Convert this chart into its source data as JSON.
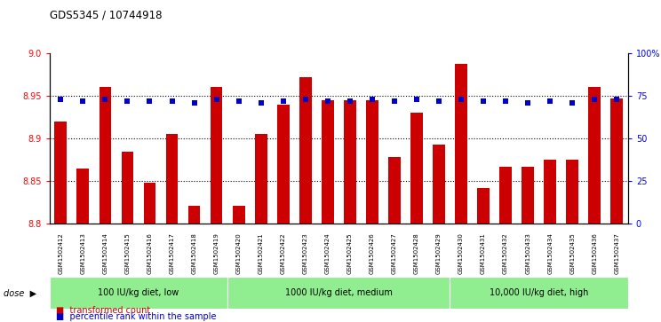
{
  "title": "GDS5345 / 10744918",
  "samples": [
    "GSM1502412",
    "GSM1502413",
    "GSM1502414",
    "GSM1502415",
    "GSM1502416",
    "GSM1502417",
    "GSM1502418",
    "GSM1502419",
    "GSM1502420",
    "GSM1502421",
    "GSM1502422",
    "GSM1502423",
    "GSM1502424",
    "GSM1502425",
    "GSM1502426",
    "GSM1502427",
    "GSM1502428",
    "GSM1502429",
    "GSM1502430",
    "GSM1502431",
    "GSM1502432",
    "GSM1502433",
    "GSM1502434",
    "GSM1502435",
    "GSM1502436",
    "GSM1502437"
  ],
  "bar_values": [
    8.92,
    8.865,
    8.96,
    8.885,
    8.848,
    8.905,
    8.821,
    8.96,
    8.821,
    8.905,
    8.94,
    8.972,
    8.945,
    8.945,
    8.945,
    8.878,
    8.93,
    8.893,
    8.987,
    8.842,
    8.867,
    8.867,
    8.875,
    8.875,
    8.96,
    8.947
  ],
  "percentile_values": [
    73,
    72,
    73,
    72,
    72,
    72,
    71,
    73,
    72,
    71,
    72,
    73,
    72,
    72,
    73,
    72,
    73,
    72,
    73,
    72,
    72,
    71,
    72,
    71,
    73,
    73
  ],
  "ylim_left": [
    8.8,
    9.0
  ],
  "ylim_right": [
    0,
    100
  ],
  "yticks_left": [
    8.8,
    8.85,
    8.9,
    8.95,
    9.0
  ],
  "yticks_right": [
    0,
    25,
    50,
    75,
    100
  ],
  "ytick_labels_right": [
    "0",
    "25",
    "50",
    "75",
    "100%"
  ],
  "hlines": [
    8.85,
    8.9,
    8.95
  ],
  "dose_groups": [
    {
      "label": "100 IU/kg diet, low",
      "start": 0,
      "end": 8
    },
    {
      "label": "1000 IU/kg diet, medium",
      "start": 8,
      "end": 18
    },
    {
      "label": "10,000 IU/kg diet, high",
      "start": 18,
      "end": 26
    }
  ],
  "bar_color": "#cc0000",
  "dot_color": "#0000cc",
  "bar_width": 0.55,
  "legend": [
    {
      "label": "transformed count",
      "color": "#cc0000"
    },
    {
      "label": "percentile rank within the sample",
      "color": "#0000cc"
    }
  ],
  "group_fill": "#90EE90",
  "tick_bg": "#cccccc"
}
